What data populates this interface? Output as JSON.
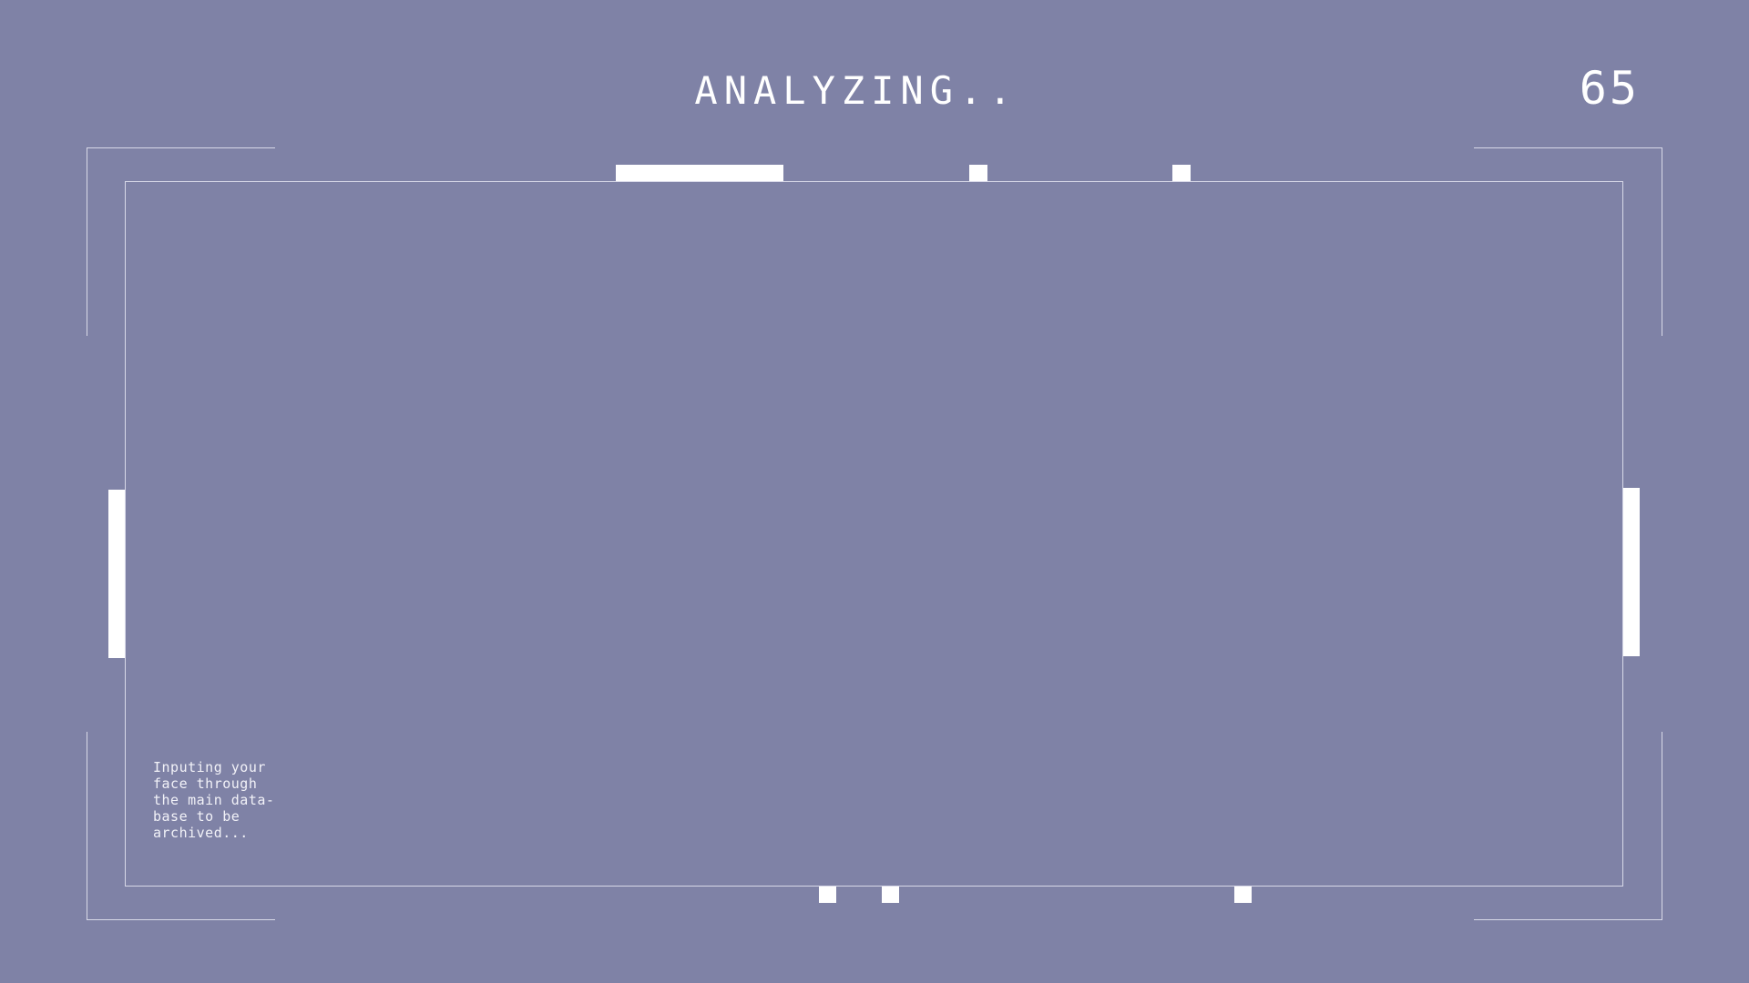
{
  "header": {
    "status_text": "ANALYZING..",
    "counter": "65"
  },
  "viewfinder": {
    "caption": "Inputing your\nface through\nthe main data-\nbase to be\narchived..."
  },
  "colors": {
    "background": "#7f82a6",
    "foreground": "#ffffff",
    "frame_line": "#d8d9e8"
  }
}
